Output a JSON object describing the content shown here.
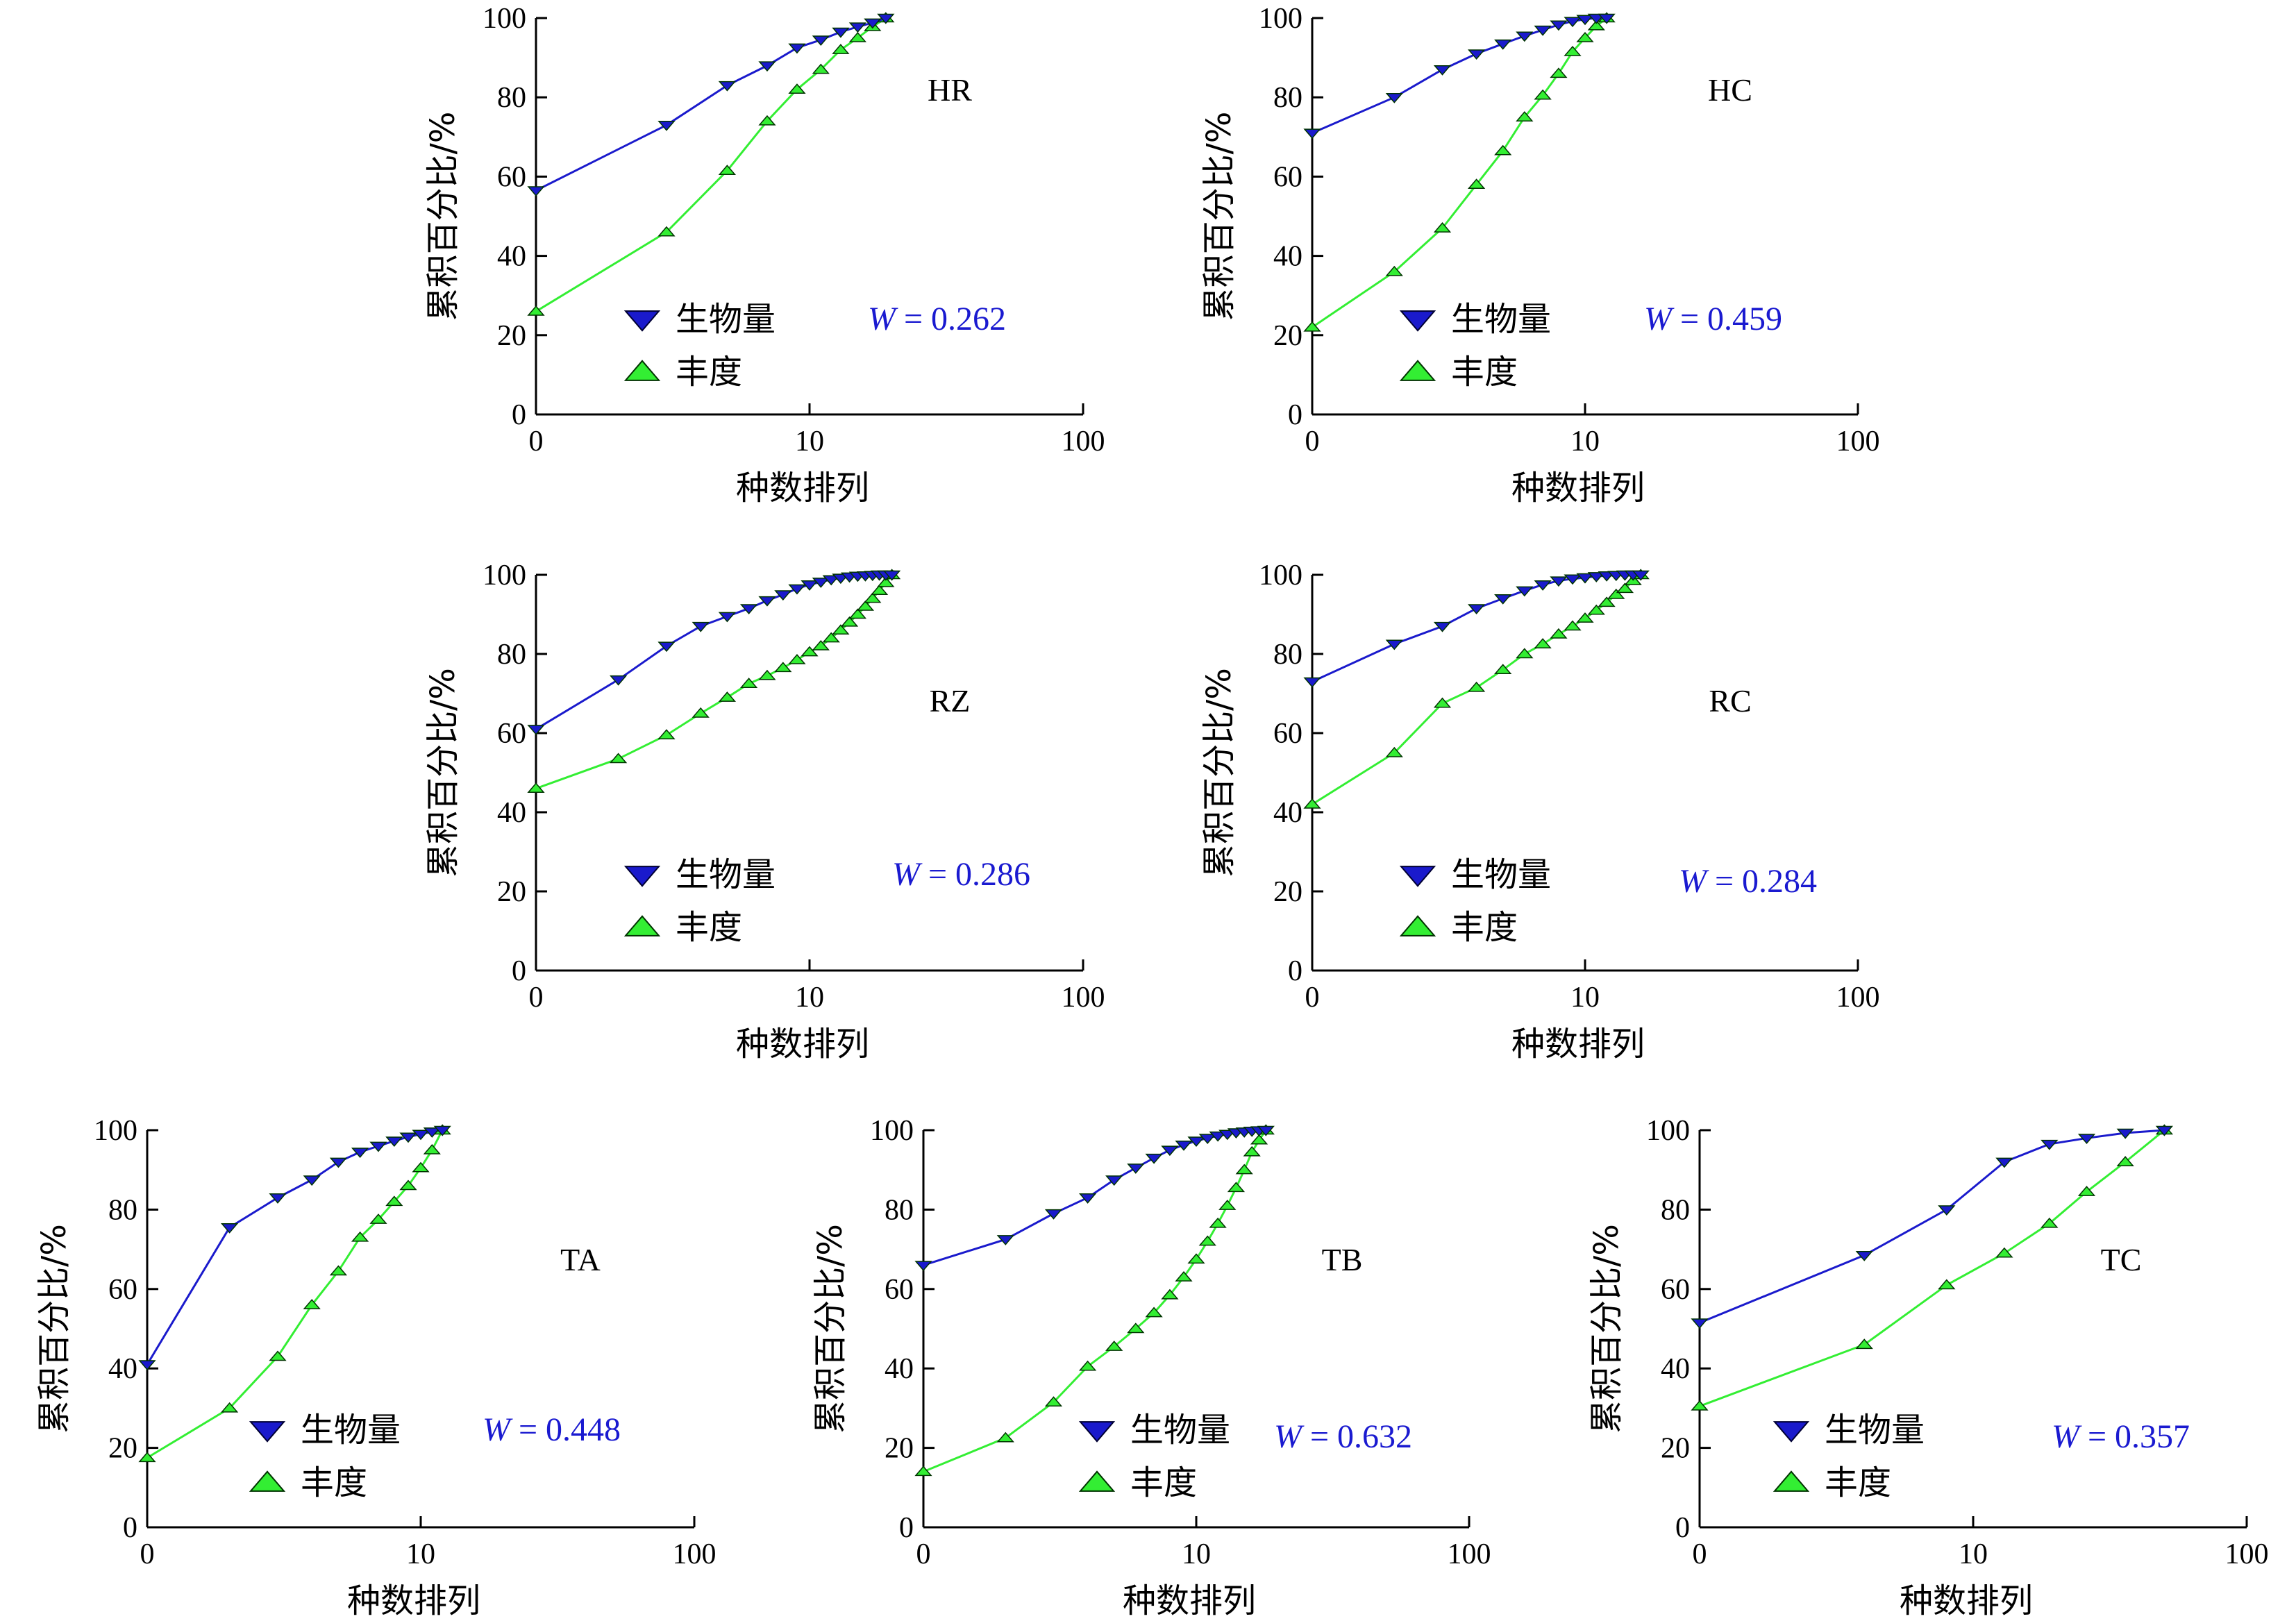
{
  "colors": {
    "biomass": "#1a1acc",
    "abundance": "#33ee33",
    "biomass_line": "#1a1acc",
    "abundance_line": "#33ee33",
    "w_text": "#1a1ad0"
  },
  "chart_data": [
    {
      "type": "line",
      "panel": "HR",
      "xlabel": "种数排列",
      "ylabel": "累积百分比/%",
      "x_scale": "log",
      "xlim": [
        1,
        100
      ],
      "ylim": [
        0,
        100
      ],
      "x_ticks": [
        "0",
        "10",
        "100"
      ],
      "y_ticks": [
        "0",
        "20",
        "40",
        "60",
        "80",
        "100"
      ],
      "legend": [
        "生物量",
        "丰度"
      ],
      "annotation": {
        "w_label": "W",
        "w_value": "= 0.262"
      },
      "series": [
        {
          "name": "生物量",
          "marker": "triangle-down",
          "x": [
            1,
            3,
            5,
            7,
            9,
            11,
            13,
            15,
            17,
            19
          ],
          "y": [
            56.5,
            73,
            83,
            88,
            92.5,
            94.5,
            96.5,
            97.8,
            98.8,
            100
          ]
        },
        {
          "name": "丰度",
          "marker": "triangle-up",
          "x": [
            1,
            3,
            5,
            7,
            9,
            11,
            13,
            15,
            17,
            19
          ],
          "y": [
            26,
            46,
            61.5,
            74,
            82,
            87,
            92,
            95,
            97.8,
            100
          ]
        }
      ]
    },
    {
      "type": "line",
      "panel": "HC",
      "xlabel": "种数排列",
      "ylabel": "累积百分比/%",
      "x_scale": "log",
      "xlim": [
        1,
        100
      ],
      "ylim": [
        0,
        100
      ],
      "x_ticks": [
        "0",
        "10",
        "100"
      ],
      "y_ticks": [
        "0",
        "20",
        "40",
        "60",
        "80",
        "100"
      ],
      "legend": [
        "生物量",
        "丰度"
      ],
      "annotation": {
        "w_label": "W",
        "w_value": "= 0.459"
      },
      "series": [
        {
          "name": "生物量",
          "marker": "triangle-down",
          "x": [
            1,
            2,
            3,
            4,
            5,
            6,
            7,
            8,
            9,
            10,
            11,
            12
          ],
          "y": [
            71,
            80,
            87,
            91,
            93.5,
            95.5,
            97,
            98.3,
            99.2,
            99.7,
            100,
            100
          ]
        },
        {
          "name": "丰度",
          "marker": "triangle-up",
          "x": [
            1,
            2,
            3,
            4,
            5,
            6,
            7,
            8,
            9,
            10,
            11,
            12
          ],
          "y": [
            22,
            36,
            47,
            58,
            66.5,
            75,
            80.5,
            86,
            91.5,
            95,
            98,
            100
          ]
        }
      ]
    },
    {
      "type": "line",
      "panel": "RZ",
      "xlabel": "种数排列",
      "ylabel": "累积百分比/%",
      "x_scale": "log",
      "xlim": [
        1,
        100
      ],
      "ylim": [
        0,
        100
      ],
      "x_ticks": [
        "0",
        "10",
        "100"
      ],
      "y_ticks": [
        "0",
        "20",
        "40",
        "60",
        "80",
        "100"
      ],
      "legend": [
        "生物量",
        "丰度"
      ],
      "annotation": {
        "w_label": "W",
        "w_value": "= 0.286"
      },
      "series": [
        {
          "name": "生物量",
          "marker": "triangle-down",
          "x": [
            1,
            2,
            3,
            4,
            5,
            6,
            7,
            8,
            9,
            10,
            11,
            12,
            13,
            14,
            15,
            16,
            17,
            18,
            19,
            20
          ],
          "y": [
            61,
            73.5,
            82,
            87,
            89.5,
            91.5,
            93.5,
            95,
            96.5,
            97.5,
            98.2,
            98.8,
            99.2,
            99.5,
            99.7,
            99.8,
            99.9,
            100,
            100,
            100
          ]
        },
        {
          "name": "丰度",
          "marker": "triangle-up",
          "x": [
            1,
            2,
            3,
            4,
            5,
            6,
            7,
            8,
            9,
            10,
            11,
            12,
            13,
            14,
            15,
            16,
            17,
            18,
            19,
            20
          ],
          "y": [
            46,
            53.5,
            59.5,
            65,
            69,
            72.5,
            74.5,
            76.5,
            78.5,
            80.5,
            82,
            84,
            86,
            88,
            90,
            92,
            94,
            96,
            98,
            100
          ]
        }
      ]
    },
    {
      "type": "line",
      "panel": "RC",
      "xlabel": "种数排列",
      "ylabel": "累积百分比/%",
      "x_scale": "log",
      "xlim": [
        1,
        100
      ],
      "ylim": [
        0,
        100
      ],
      "x_ticks": [
        "0",
        "10",
        "100"
      ],
      "y_ticks": [
        "0",
        "20",
        "40",
        "60",
        "80",
        "100"
      ],
      "legend": [
        "生物量",
        "丰度"
      ],
      "annotation": {
        "w_label": "W",
        "w_value": "= 0.284"
      },
      "series": [
        {
          "name": "生物量",
          "marker": "triangle-down",
          "x": [
            1,
            2,
            3,
            4,
            5,
            6,
            7,
            8,
            9,
            10,
            11,
            12,
            13,
            14,
            15,
            16
          ],
          "y": [
            73,
            82.5,
            87,
            91.5,
            94,
            96,
            97.5,
            98.5,
            99,
            99.3,
            99.6,
            99.8,
            99.9,
            100,
            100,
            100
          ]
        },
        {
          "name": "丰度",
          "marker": "triangle-up",
          "x": [
            1,
            2,
            3,
            4,
            5,
            6,
            7,
            8,
            9,
            10,
            11,
            12,
            13,
            14,
            15,
            16
          ],
          "y": [
            42,
            55,
            67.5,
            71.5,
            76,
            80,
            82.5,
            85,
            87,
            89,
            91,
            93,
            95,
            96.5,
            98.5,
            100
          ]
        }
      ]
    },
    {
      "type": "line",
      "panel": "TA",
      "xlabel": "种数排列",
      "ylabel": "累积百分比/%",
      "x_scale": "log",
      "xlim": [
        1,
        100
      ],
      "ylim": [
        0,
        100
      ],
      "x_ticks": [
        "0",
        "10",
        "100"
      ],
      "y_ticks": [
        "0",
        "20",
        "40",
        "60",
        "80",
        "100"
      ],
      "legend": [
        "生物量",
        "丰度"
      ],
      "annotation": {
        "w_label": "W",
        "w_value": "= 0.448"
      },
      "series": [
        {
          "name": "生物量",
          "marker": "triangle-down",
          "x": [
            1,
            2,
            3,
            4,
            5,
            6,
            7,
            8,
            9,
            10,
            11,
            12
          ],
          "y": [
            41,
            75.5,
            83,
            87.5,
            92,
            94.5,
            96,
            97.3,
            98.3,
            99,
            99.6,
            100
          ]
        },
        {
          "name": "丰度",
          "marker": "triangle-up",
          "x": [
            1,
            2,
            3,
            4,
            5,
            6,
            7,
            8,
            9,
            10,
            11,
            12
          ],
          "y": [
            17.5,
            30,
            43,
            56,
            64.5,
            73,
            77.5,
            82,
            86,
            90.5,
            95,
            100
          ]
        }
      ]
    },
    {
      "type": "line",
      "panel": "TB",
      "xlabel": "种数排列",
      "ylabel": "累积百分比/%",
      "x_scale": "log",
      "xlim": [
        1,
        100
      ],
      "ylim": [
        0,
        100
      ],
      "x_ticks": [
        "0",
        "10",
        "100"
      ],
      "y_ticks": [
        "0",
        "20",
        "40",
        "60",
        "80",
        "100"
      ],
      "legend": [
        "生物量",
        "丰度"
      ],
      "annotation": {
        "w_label": "W",
        "w_value": "= 0.632"
      },
      "series": [
        {
          "name": "生物量",
          "marker": "triangle-down",
          "x": [
            1,
            2,
            3,
            4,
            5,
            6,
            7,
            8,
            9,
            10,
            11,
            12,
            13,
            14,
            15,
            16,
            17,
            18
          ],
          "y": [
            66,
            72.5,
            79,
            83,
            87.5,
            90.5,
            93,
            95,
            96.3,
            97.3,
            98,
            98.6,
            99,
            99.4,
            99.6,
            99.8,
            99.9,
            100
          ]
        },
        {
          "name": "丰度",
          "marker": "triangle-up",
          "x": [
            1,
            2,
            3,
            4,
            5,
            6,
            7,
            8,
            9,
            10,
            11,
            12,
            13,
            14,
            15,
            16,
            17,
            18
          ],
          "y": [
            14,
            22.5,
            31.5,
            40.5,
            45.5,
            50,
            54,
            58.5,
            63,
            67.5,
            72,
            76.5,
            81,
            85.5,
            90,
            94.5,
            97.5,
            100
          ]
        }
      ]
    },
    {
      "type": "line",
      "panel": "TC",
      "xlabel": "种数排列",
      "ylabel": "累积百分比/%",
      "x_scale": "log",
      "xlim": [
        1,
        100
      ],
      "ylim": [
        0,
        100
      ],
      "x_ticks": [
        "0",
        "10",
        "100"
      ],
      "y_ticks": [
        "0",
        "20",
        "40",
        "60",
        "80",
        "100"
      ],
      "legend": [
        "生物量",
        "丰度"
      ],
      "annotation": {
        "w_label": "W",
        "w_value": "= 0.357"
      },
      "series": [
        {
          "name": "生物量",
          "marker": "triangle-down",
          "x": [
            1,
            4,
            8,
            13,
            19,
            26,
            36,
            50
          ],
          "y": [
            51.5,
            68.5,
            80,
            92,
            96.5,
            98,
            99.3,
            100
          ]
        },
        {
          "name": "丰度",
          "marker": "triangle-up",
          "x": [
            1,
            4,
            8,
            13,
            19,
            26,
            36,
            50
          ],
          "y": [
            30.5,
            46,
            61,
            69,
            76.5,
            84.5,
            92,
            100
          ]
        }
      ]
    }
  ]
}
